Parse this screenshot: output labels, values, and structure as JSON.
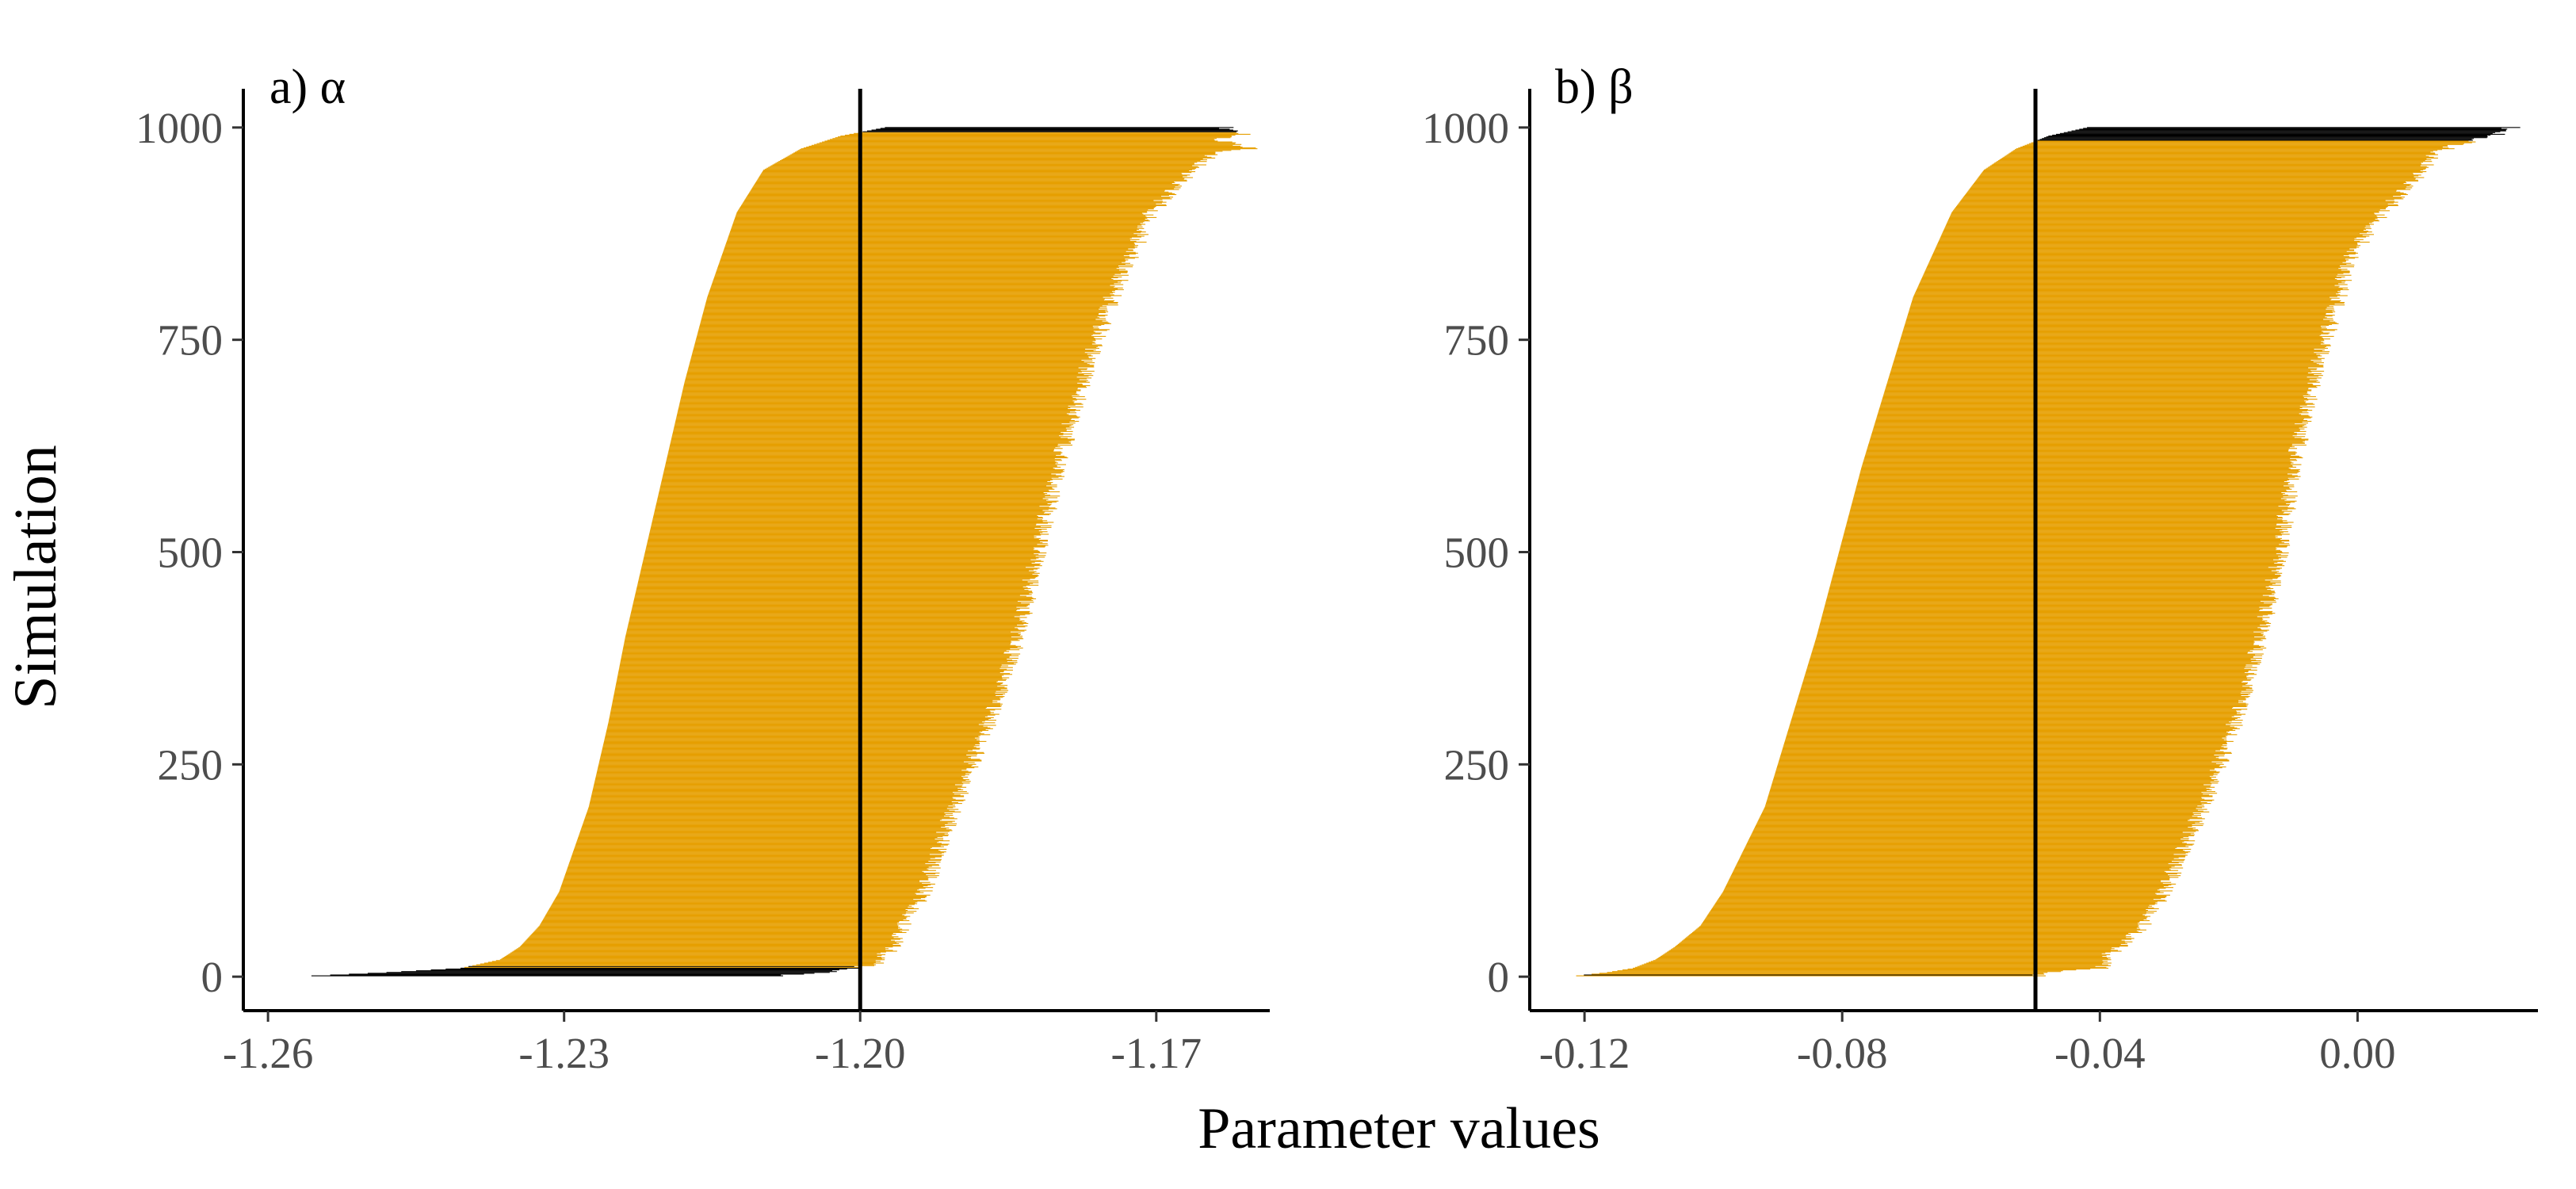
{
  "figure": {
    "ylabel": "Simulation",
    "xlabel": "Parameter values"
  },
  "colors": {
    "covering": "#E69F00",
    "not_covering": "#000000",
    "reference_line": "#000000",
    "tick_text": "#4D4D4D",
    "title_text": "#000000"
  },
  "chart_data": [
    {
      "type": "bar",
      "orientation": "horizontal-interval",
      "title": "a) α",
      "xlabel": "Parameter values",
      "ylabel": "Simulation",
      "xlim": [
        -1.2625,
        -1.1585
      ],
      "ylim": [
        -40,
        1040
      ],
      "xticks": [
        -1.26,
        -1.23,
        -1.2,
        -1.17
      ],
      "xtick_labels": [
        "-1.26",
        "-1.23",
        "-1.20",
        "-1.17"
      ],
      "yticks": [
        0,
        250,
        500,
        750,
        1000
      ],
      "ytick_labels": [
        "0",
        "250",
        "500",
        "750",
        "1000"
      ],
      "reference_value": -1.2,
      "n_simulations": 1000,
      "lower_bound_profile": [
        [
          0,
          -1.2575
        ],
        [
          5,
          -1.248
        ],
        [
          10,
          -1.2405
        ],
        [
          20,
          -1.2365
        ],
        [
          35,
          -1.2345
        ],
        [
          60,
          -1.2325
        ],
        [
          100,
          -1.2305
        ],
        [
          200,
          -1.2275
        ],
        [
          300,
          -1.2255
        ],
        [
          400,
          -1.2238
        ],
        [
          500,
          -1.2218
        ],
        [
          600,
          -1.2198
        ],
        [
          700,
          -1.2178
        ],
        [
          800,
          -1.2155
        ],
        [
          900,
          -1.2125
        ],
        [
          950,
          -1.2098
        ],
        [
          975,
          -1.206
        ],
        [
          990,
          -1.202
        ],
        [
          1000,
          -1.1975
        ]
      ],
      "upper_bound_profile": [
        [
          0,
          -1.21
        ],
        [
          5,
          -1.203
        ],
        [
          10,
          -1.201
        ],
        [
          15,
          -1.1985
        ],
        [
          25,
          -1.1975
        ],
        [
          40,
          -1.1965
        ],
        [
          60,
          -1.1955
        ],
        [
          100,
          -1.1935
        ],
        [
          200,
          -1.1905
        ],
        [
          300,
          -1.187
        ],
        [
          400,
          -1.184
        ],
        [
          500,
          -1.182
        ],
        [
          600,
          -1.18
        ],
        [
          700,
          -1.1775
        ],
        [
          800,
          -1.1745
        ],
        [
          850,
          -1.1725
        ],
        [
          900,
          -1.1705
        ],
        [
          950,
          -1.1665
        ],
        [
          970,
          -1.164
        ],
        [
          976,
          -1.16
        ],
        [
          985,
          -1.164
        ],
        [
          993,
          -1.161
        ],
        [
          1000,
          -1.163
        ]
      ]
    },
    {
      "type": "bar",
      "orientation": "horizontal-interval",
      "title": "b) β",
      "xlabel": "Parameter values",
      "ylabel": "Simulation",
      "xlim": [
        -0.1285,
        0.028
      ],
      "ylim": [
        -40,
        1040
      ],
      "xticks": [
        -0.12,
        -0.08,
        -0.04,
        0.0
      ],
      "xtick_labels": [
        "-0.12",
        "-0.08",
        "-0.04",
        "0.00"
      ],
      "yticks": [
        0,
        250,
        500,
        750,
        1000
      ],
      "ytick_labels": [
        "0",
        "250",
        "500",
        "750",
        "1000"
      ],
      "reference_value": -0.05,
      "n_simulations": 1000,
      "lower_bound_profile": [
        [
          0,
          -0.1225
        ],
        [
          5,
          -0.1165
        ],
        [
          10,
          -0.1125
        ],
        [
          20,
          -0.109
        ],
        [
          35,
          -0.106
        ],
        [
          60,
          -0.102
        ],
        [
          100,
          -0.0985
        ],
        [
          200,
          -0.092
        ],
        [
          300,
          -0.088
        ],
        [
          400,
          -0.084
        ],
        [
          500,
          -0.0805
        ],
        [
          600,
          -0.077
        ],
        [
          700,
          -0.073
        ],
        [
          800,
          -0.069
        ],
        [
          900,
          -0.063
        ],
        [
          950,
          -0.058
        ],
        [
          975,
          -0.053
        ],
        [
          990,
          -0.048
        ],
        [
          1000,
          -0.042
        ]
      ],
      "upper_bound_profile": [
        [
          0,
          -0.05
        ],
        [
          5,
          -0.048
        ],
        [
          10,
          -0.04
        ],
        [
          30,
          -0.038
        ],
        [
          60,
          -0.033
        ],
        [
          100,
          -0.03
        ],
        [
          200,
          -0.024
        ],
        [
          300,
          -0.019
        ],
        [
          400,
          -0.015
        ],
        [
          500,
          -0.012
        ],
        [
          600,
          -0.01
        ],
        [
          700,
          -0.007
        ],
        [
          800,
          -0.003
        ],
        [
          850,
          -0.001
        ],
        [
          900,
          0.004
        ],
        [
          950,
          0.01
        ],
        [
          970,
          0.012
        ],
        [
          976,
          0.014
        ],
        [
          985,
          0.018
        ],
        [
          993,
          0.022
        ],
        [
          1000,
          0.024
        ]
      ]
    }
  ]
}
